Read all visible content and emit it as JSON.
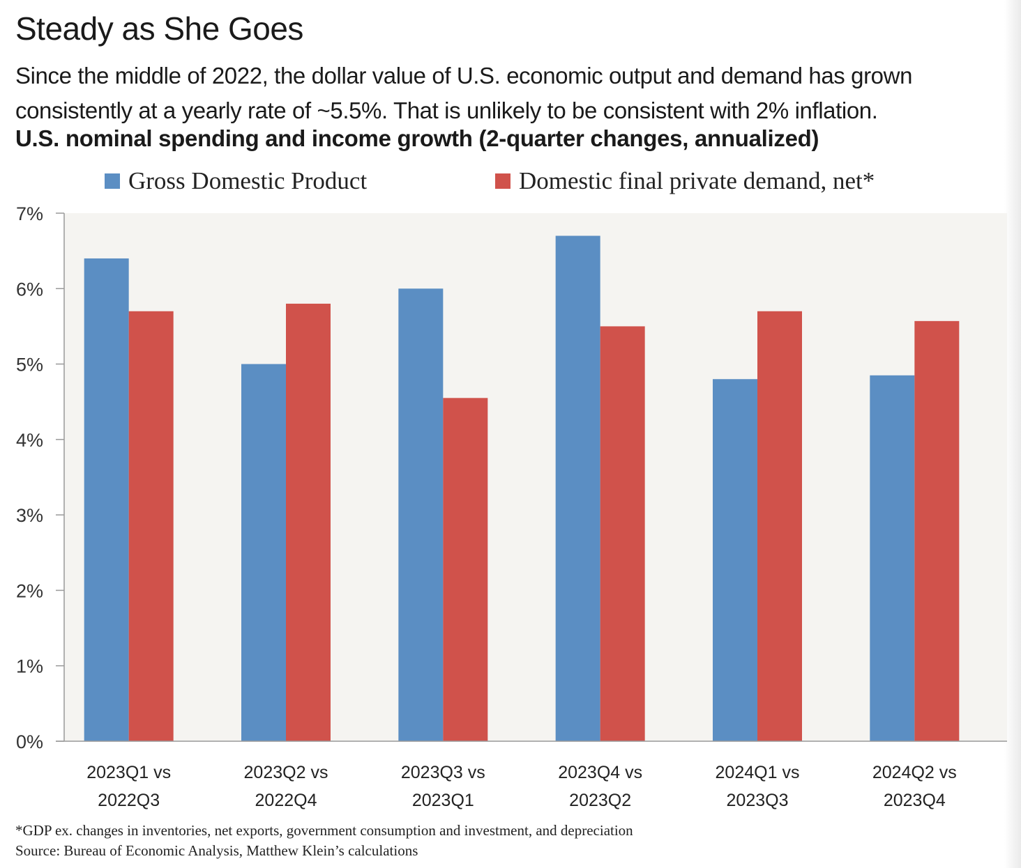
{
  "header": {
    "title": "Steady as She Goes",
    "subtitle": "Since the middle of 2022, the dollar value of U.S. economic output and demand has grown consistently at a yearly rate of ~5.5%. That is unlikely to be consistent with 2% inflation.",
    "chart_title": "U.S. nominal spending and income growth (2-quarter changes, annualized)"
  },
  "colors": {
    "gdp": "#5b8ec3",
    "demand": "#d0524b",
    "plot_background": "#f5f4f1",
    "axis": "#999999"
  },
  "chart_data": {
    "type": "bar",
    "title": "U.S. nominal spending and income growth (2-quarter changes, annualized)",
    "categories": [
      [
        "2023Q1 vs",
        "2022Q3"
      ],
      [
        "2023Q2 vs",
        "2022Q4"
      ],
      [
        "2023Q3 vs",
        "2023Q1"
      ],
      [
        "2023Q4 vs",
        "2023Q2"
      ],
      [
        "2024Q1 vs",
        "2023Q3"
      ],
      [
        "2024Q2 vs",
        "2023Q4"
      ]
    ],
    "series": [
      {
        "name": "Gross Domestic Product",
        "values": [
          6.4,
          5.0,
          6.0,
          6.7,
          4.8,
          4.85
        ]
      },
      {
        "name": "Domestic final private demand, net*",
        "values": [
          5.7,
          5.8,
          4.55,
          5.5,
          5.7,
          5.57
        ]
      }
    ],
    "ylim": [
      0,
      7
    ],
    "yticks": [
      "0%",
      "1%",
      "2%",
      "3%",
      "4%",
      "5%",
      "6%",
      "7%"
    ],
    "y_unit": "%",
    "grid": false,
    "legend_position": "top"
  },
  "notes": {
    "footnote": "*GDP ex. changes in inventories, net exports, government consumption and investment, and depreciation",
    "source": "Source: Bureau of Economic Analysis, Matthew Klein’s calculations"
  }
}
